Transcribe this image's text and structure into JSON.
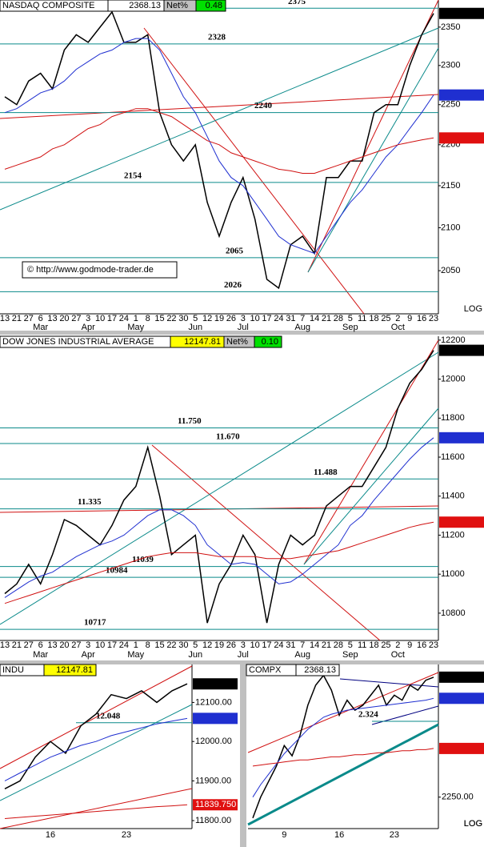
{
  "chart_data": [
    {
      "type": "line",
      "title": "NASDAQ COMPOSITE",
      "last": 2368.13,
      "net_label": "Net%",
      "net_pct": 0.48,
      "watermark": "© http://www.godmode-trader.de",
      "log": true,
      "scale_label": "LOG",
      "ylim": [
        2001,
        2386
      ],
      "yticks": [
        2350,
        2300,
        2250,
        2200,
        2150,
        2100,
        2050
      ],
      "categories": [
        "13",
        "21",
        "27",
        "6",
        "13",
        "20",
        "27",
        "3",
        "10",
        "17",
        "24",
        "1",
        "8",
        "15",
        "22",
        "30",
        "5",
        "12",
        "19",
        "26",
        "3",
        "10",
        "17",
        "24",
        "31",
        "7",
        "14",
        "21",
        "28",
        "5",
        "11",
        "18",
        "25",
        "2",
        "9",
        "16",
        "23"
      ],
      "months": [
        null,
        null,
        null,
        "Mar",
        null,
        null,
        null,
        "Apr",
        null,
        null,
        null,
        "May",
        null,
        null,
        null,
        null,
        "Jun",
        null,
        null,
        null,
        "Jul",
        null,
        null,
        null,
        null,
        "Aug",
        null,
        null,
        null,
        "Sep",
        null,
        null,
        null,
        "Oct",
        null,
        null,
        null
      ],
      "series": [
        {
          "color": "#000000",
          "values": [
            2260,
            2250,
            2280,
            2290,
            2270,
            2320,
            2340,
            2330,
            2350,
            2370,
            2330,
            2330,
            2340,
            2240,
            2200,
            2180,
            2200,
            2130,
            2090,
            2130,
            2160,
            2110,
            2040,
            2030,
            2080,
            2090,
            2070,
            2160,
            2160,
            2180,
            2180,
            2240,
            2250,
            2250,
            2300,
            2340,
            2368.13
          ]
        },
        {
          "color": "#1f2fd0",
          "values": [
            2240,
            2245,
            2255,
            2265,
            2270,
            2280,
            2295,
            2305,
            2315,
            2320,
            2330,
            2335,
            2335,
            2320,
            2290,
            2260,
            2240,
            2210,
            2180,
            2160,
            2150,
            2130,
            2110,
            2090,
            2080,
            2075,
            2070,
            2090,
            2110,
            2130,
            2145,
            2165,
            2185,
            2200,
            2220,
            2240,
            2262.221
          ]
        },
        {
          "color": "#d01010",
          "values": [
            2170,
            2175,
            2180,
            2185,
            2195,
            2200,
            2210,
            2220,
            2225,
            2235,
            2240,
            2245,
            2245,
            2240,
            2235,
            2225,
            2215,
            2205,
            2200,
            2190,
            2185,
            2180,
            2175,
            2170,
            2168,
            2165,
            2165,
            2170,
            2175,
            2180,
            2185,
            2190,
            2195,
            2200,
            2203,
            2206,
            2208.397
          ]
        }
      ],
      "price_tags": [
        {
          "value": 2368.13,
          "color": "#000000"
        },
        {
          "value": 2262.221,
          "color": "#1f2fd0"
        },
        {
          "value": 2208.397,
          "color": "#e01010"
        }
      ],
      "levels": [
        2375,
        2328,
        2240,
        2154,
        2065,
        2026
      ]
    },
    {
      "type": "line",
      "title": "DOW JONES INDUSTRIAL AVERAGE",
      "last": 12147.81,
      "net_label": "Net%",
      "net_pct": {
        "value": 0.1,
        "label": "0.10"
      },
      "log": false,
      "ylim": [
        10660,
        12220
      ],
      "yticks": [
        12200,
        12000,
        11800,
        11600,
        11400,
        11200,
        11000,
        10800
      ],
      "categories": [
        "13",
        "21",
        "27",
        "6",
        "13",
        "20",
        "27",
        "3",
        "10",
        "17",
        "24",
        "1",
        "8",
        "15",
        "22",
        "30",
        "5",
        "12",
        "19",
        "26",
        "3",
        "10",
        "17",
        "24",
        "31",
        "7",
        "14",
        "21",
        "28",
        "5",
        "11",
        "18",
        "25",
        "2",
        "9",
        "16",
        "23"
      ],
      "months": [
        null,
        null,
        null,
        "Mar",
        null,
        null,
        null,
        "Apr",
        null,
        null,
        null,
        "May",
        null,
        null,
        null,
        null,
        "Jun",
        null,
        null,
        null,
        "Jul",
        null,
        null,
        null,
        null,
        "Aug",
        null,
        null,
        null,
        "Sep",
        null,
        null,
        null,
        "Oct",
        null,
        null,
        null
      ],
      "series": [
        {
          "color": "#000000",
          "values": [
            10900,
            10950,
            11050,
            10950,
            11100,
            11280,
            11250,
            11200,
            11150,
            11250,
            11380,
            11450,
            11650,
            11400,
            11100,
            11150,
            11200,
            10750,
            10950,
            11050,
            11200,
            11100,
            10750,
            11050,
            11200,
            11150,
            11200,
            11350,
            11400,
            11450,
            11450,
            11550,
            11650,
            11850,
            11980,
            12050,
            12147.81
          ]
        },
        {
          "color": "#1f2fd0",
          "values": [
            10880,
            10920,
            10960,
            10990,
            11010,
            11050,
            11090,
            11120,
            11150,
            11170,
            11200,
            11250,
            11300,
            11330,
            11330,
            11300,
            11250,
            11150,
            11100,
            11050,
            11060,
            11050,
            11000,
            10950,
            10960,
            11000,
            11050,
            11100,
            11150,
            11250,
            11300,
            11380,
            11450,
            11520,
            11590,
            11650,
            11699.341
          ]
        },
        {
          "color": "#d01010",
          "values": [
            10850,
            10870,
            10890,
            10910,
            10930,
            10950,
            10970,
            10990,
            11010,
            11030,
            11050,
            11070,
            11090,
            11100,
            11110,
            11110,
            11110,
            11100,
            11090,
            11090,
            11090,
            11090,
            11080,
            11080,
            11080,
            11090,
            11100,
            11110,
            11120,
            11140,
            11160,
            11180,
            11200,
            11220,
            11240,
            11255,
            11266.689
          ]
        }
      ],
      "price_tags": [
        {
          "value": 12147.81,
          "color": "#000000"
        },
        {
          "value": 11699.341,
          "color": "#1f2fd0"
        },
        {
          "value": 11266.689,
          "color": "#e01010"
        }
      ],
      "levels": [
        {
          "value": 11750,
          "label": "11.750"
        },
        {
          "value": 11670,
          "label": "11.670"
        },
        {
          "value": 11488,
          "label": "11.488"
        },
        {
          "value": 11335,
          "label": "11.335"
        },
        11039,
        10984,
        10717
      ]
    },
    {
      "type": "line",
      "title": "INDU",
      "last": 12147.81,
      "log": true,
      "scale_label": "LOG",
      "ylim": [
        11780,
        12198
      ],
      "yticks": [
        {
          "value": 12100,
          "label": "12100.00"
        },
        {
          "value": 12000,
          "label": "12000.00"
        },
        {
          "value": 11900,
          "label": "11900.00"
        },
        {
          "value": 11800,
          "label": "11800.00"
        }
      ],
      "categories": [
        null,
        null,
        null,
        "16",
        null,
        null,
        null,
        null,
        "23",
        null,
        null,
        null,
        null
      ],
      "series": [
        {
          "color": "#000000",
          "values": [
            11880,
            11900,
            11960,
            12000,
            11970,
            12040,
            12070,
            12120,
            12110,
            12130,
            12100,
            12130,
            12147.81
          ]
        },
        {
          "color": "#1f2fd0",
          "values": [
            11900,
            11920,
            11940,
            11960,
            11975,
            11990,
            12000,
            12015,
            12025,
            12035,
            12045,
            12052,
            12059.056
          ]
        },
        {
          "color": "#d01010",
          "values": [
            11805,
            11808,
            11811,
            11814,
            11817,
            11820,
            11823,
            11826,
            11829,
            11832,
            11835,
            11837,
            11839.75
          ]
        }
      ],
      "price_tags": [
        {
          "value": 12147.81,
          "color": "#000000"
        },
        {
          "value": 12059.056,
          "color": "#1f2fd0"
        },
        {
          "value": 11839.75,
          "label": "11839.750",
          "color": "#e01010"
        }
      ],
      "levels": [
        {
          "value": 12048,
          "label": "12.048"
        }
      ]
    },
    {
      "type": "line",
      "title": "COMPX",
      "last": 2368.13,
      "log": true,
      "scale_label": "LOG",
      "ylim": [
        2220,
        2381
      ],
      "yticks": [
        {
          "value": 2250,
          "label": "2250.00"
        }
      ],
      "categories": [
        null,
        null,
        null,
        null,
        "9",
        null,
        null,
        null,
        null,
        null,
        null,
        "16",
        null,
        null,
        null,
        null,
        null,
        null,
        "23",
        null,
        null,
        null,
        null,
        null
      ],
      "series": [
        {
          "color": "#000000",
          "values": [
            2230,
            2250,
            2265,
            2280,
            2300,
            2290,
            2310,
            2340,
            2360,
            2370,
            2355,
            2330,
            2345,
            2335,
            2340,
            2350,
            2360,
            2340,
            2350,
            2345,
            2360,
            2355,
            2365,
            2368.13
          ]
        },
        {
          "color": "#1f2fd0",
          "values": [
            2250,
            2262,
            2272,
            2282,
            2292,
            2300,
            2308,
            2316,
            2322,
            2328,
            2331,
            2333,
            2335,
            2336,
            2337,
            2338,
            2339,
            2340,
            2341,
            2342,
            2343,
            2344,
            2345,
            2346.866
          ]
        },
        {
          "color": "#d01010",
          "values": [
            2280,
            2281,
            2282,
            2283,
            2284,
            2285,
            2286,
            2286,
            2287,
            2288,
            2289,
            2289,
            2290,
            2291,
            2291,
            2292,
            2293,
            2293,
            2294,
            2295,
            2295,
            2296,
            2296,
            2297.205
          ]
        }
      ],
      "price_tags": [
        {
          "value": 2368.13,
          "color": "#000000"
        },
        {
          "value": 2346.866,
          "color": "#1f2fd0"
        },
        {
          "value": 2297.205,
          "color": "#e01010"
        }
      ],
      "levels": [
        {
          "value": 2324,
          "label": "2.324"
        }
      ]
    }
  ]
}
